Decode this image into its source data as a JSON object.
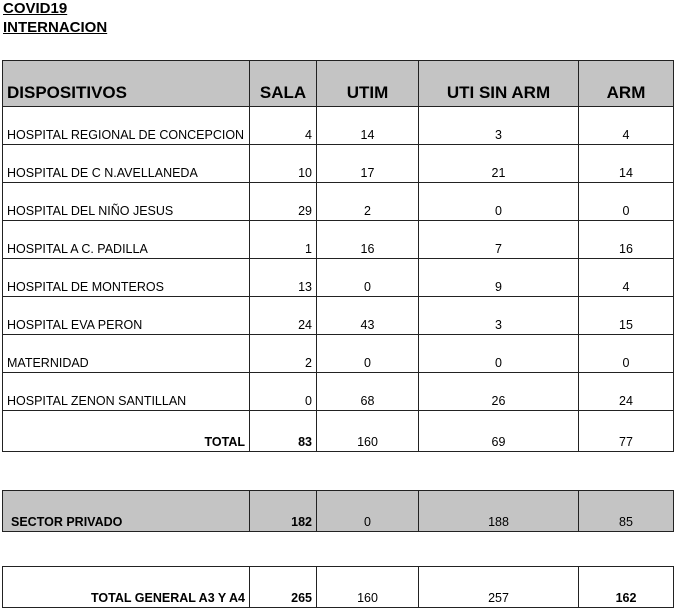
{
  "title": "COVID19",
  "subtitle": "INTERNACION",
  "colors": {
    "header_bg": "#c4c4c4",
    "private_bg": "#c4c4c4"
  },
  "headers": [
    "DISPOSITIVOS",
    "SALA",
    "UTIM",
    "UTI SIN ARM",
    "ARM"
  ],
  "rows": [
    {
      "name": "HOSPITAL REGIONAL DE  CONCEPCION",
      "sala": "4",
      "utim": "14",
      "uti_sin_arm": "3",
      "arm": "4"
    },
    {
      "name": "HOSPITAL  DE C N.AVELLANEDA",
      "sala": "10",
      "utim": "17",
      "uti_sin_arm": "21",
      "arm": "14"
    },
    {
      "name": "HOSPITAL DEL  NIÑO JESUS",
      "sala": "29",
      "utim": "2",
      "uti_sin_arm": "0",
      "arm": "0"
    },
    {
      "name": "HOSPITAL  A  C. PADILLA",
      "sala": "1",
      "utim": "16",
      "uti_sin_arm": "7",
      "arm": "16"
    },
    {
      "name": "HOSPITAL DE MONTEROS",
      "sala": "13",
      "utim": "0",
      "uti_sin_arm": "9",
      "arm": "4"
    },
    {
      "name": "HOSPITAL EVA PERON",
      "sala": "24",
      "utim": "43",
      "uti_sin_arm": "3",
      "arm": "15"
    },
    {
      "name": "MATERNIDAD",
      "sala": "2",
      "utim": "0",
      "uti_sin_arm": "0",
      "arm": "0"
    },
    {
      "name": "HOSPITAL ZENON SANTILLAN",
      "sala": "0",
      "utim": "68",
      "uti_sin_arm": "26",
      "arm": "24"
    }
  ],
  "total": {
    "name": "TOTAL",
    "sala": "83",
    "utim": "160",
    "uti_sin_arm": "69",
    "arm": "77"
  },
  "private": {
    "name": "SECTOR PRIVADO",
    "sala": "182",
    "utim": "0",
    "uti_sin_arm": "188",
    "arm": "85"
  },
  "grand_total": {
    "name": "TOTAL  GENERAL A3 Y A4",
    "sala": "265",
    "utim": "160",
    "uti_sin_arm": "257",
    "arm": "162"
  }
}
